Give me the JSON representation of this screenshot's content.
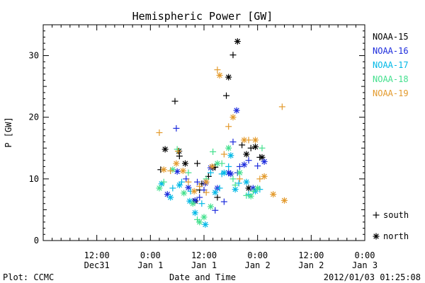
{
  "chart_data": {
    "type": "scatter",
    "title": "Hemispheric Power [GW]",
    "ylabel": "P [GW]",
    "xlabel": "Date and Time",
    "ylim": [
      0,
      35
    ],
    "yticks": [
      0,
      10,
      20,
      30
    ],
    "xlim": [
      -24,
      48
    ],
    "x_unit": "hours since 2012-01-01 00:00 UT",
    "xticks": [
      {
        "x": -12,
        "line1": "12:00",
        "line2": "Dec31"
      },
      {
        "x": 0,
        "line1": "0:00",
        "line2": "Jan 1"
      },
      {
        "x": 12,
        "line1": "12:00",
        "line2": "Jan 1"
      },
      {
        "x": 24,
        "line1": "0:00",
        "line2": "Jan 2"
      },
      {
        "x": 36,
        "line1": "12:00",
        "line2": "Jan 2"
      },
      {
        "x": 48,
        "line1": "0:00",
        "line2": "Jan 3"
      }
    ],
    "grid": false,
    "legend_position": "right",
    "marker_legend": [
      {
        "marker": "plus",
        "label": "south"
      },
      {
        "marker": "star",
        "label": "north"
      }
    ],
    "series": [
      {
        "name": "NOAA-15",
        "color": "#000000",
        "south": [
          [
            2.3,
            11.5
          ],
          [
            5.5,
            22.6
          ],
          [
            6.5,
            13.7
          ],
          [
            10.5,
            12.5
          ],
          [
            11.5,
            9.2
          ],
          [
            13.0,
            10.4
          ],
          [
            14.5,
            11.9
          ],
          [
            15.0,
            7.0
          ],
          [
            17.0,
            23.5
          ],
          [
            18.5,
            30.1
          ],
          [
            20.5,
            15.5
          ],
          [
            22.5,
            15.0
          ],
          [
            24.5,
            13.5
          ],
          [
            11.0,
            8.2
          ]
        ],
        "star": [
          [
            3.3,
            14.8
          ],
          [
            6.4,
            14.5
          ],
          [
            7.8,
            12.5
          ],
          [
            10.0,
            6.4
          ],
          [
            14.0,
            11.8
          ],
          [
            17.5,
            26.5
          ],
          [
            19.5,
            32.3
          ],
          [
            21.5,
            14.0
          ],
          [
            23.5,
            15.2
          ],
          [
            25.0,
            13.5
          ],
          [
            22.0,
            8.5
          ]
        ]
      },
      {
        "name": "NOAA-16",
        "color": "#1c2bdc",
        "south": [
          [
            5.8,
            18.2
          ],
          [
            8.0,
            10.0
          ],
          [
            11.0,
            7.0
          ],
          [
            12.0,
            8.2
          ],
          [
            14.5,
            4.9
          ],
          [
            16.5,
            6.3
          ],
          [
            18.5,
            16.0
          ],
          [
            20.0,
            12.0
          ],
          [
            22.0,
            13.0
          ],
          [
            24.0,
            12.1
          ],
          [
            10.5,
            9.5
          ],
          [
            19.5,
            11.0
          ]
        ],
        "star": [
          [
            3.8,
            7.5
          ],
          [
            6.0,
            11.2
          ],
          [
            8.5,
            8.6
          ],
          [
            10.0,
            6.5
          ],
          [
            12.3,
            9.3
          ],
          [
            15.0,
            8.5
          ],
          [
            17.5,
            11.0
          ],
          [
            19.3,
            21.1
          ],
          [
            21.0,
            12.3
          ],
          [
            23.0,
            8.5
          ],
          [
            25.5,
            12.8
          ],
          [
            13.5,
            11.8
          ],
          [
            18.0,
            10.8
          ]
        ]
      },
      {
        "name": "NOAA-17",
        "color": "#00b8e6",
        "south": [
          [
            5.0,
            8.5
          ],
          [
            7.0,
            9.5
          ],
          [
            9.0,
            8.0
          ],
          [
            11.5,
            6.0
          ],
          [
            13.5,
            11.0
          ],
          [
            15.5,
            8.5
          ],
          [
            17.5,
            12.0
          ],
          [
            19.8,
            9.3
          ],
          [
            22.0,
            7.5
          ],
          [
            24.5,
            8.3
          ],
          [
            16.0,
            10.8
          ]
        ],
        "star": [
          [
            2.5,
            9.2
          ],
          [
            4.5,
            7.0
          ],
          [
            6.5,
            9.0
          ],
          [
            8.8,
            6.4
          ],
          [
            10.0,
            4.5
          ],
          [
            12.3,
            2.6
          ],
          [
            14.5,
            7.8
          ],
          [
            16.5,
            11.0
          ],
          [
            19.0,
            8.3
          ],
          [
            21.5,
            9.5
          ],
          [
            23.5,
            8.0
          ],
          [
            18.0,
            13.8
          ]
        ]
      },
      {
        "name": "NOAA-18",
        "color": "#44e08e",
        "south": [
          [
            3.0,
            9.5
          ],
          [
            6.0,
            14.8
          ],
          [
            8.5,
            11.0
          ],
          [
            10.5,
            3.4
          ],
          [
            12.5,
            10.0
          ],
          [
            14.0,
            14.4
          ],
          [
            16.0,
            12.5
          ],
          [
            18.5,
            10.0
          ],
          [
            21.5,
            7.3
          ],
          [
            23.0,
            8.0
          ],
          [
            25.0,
            15.0
          ],
          [
            19.0,
            9.0
          ]
        ],
        "star": [
          [
            2.0,
            8.5
          ],
          [
            5.0,
            11.5
          ],
          [
            7.5,
            7.7
          ],
          [
            9.5,
            6.0
          ],
          [
            11.0,
            3.0
          ],
          [
            12.0,
            3.8
          ],
          [
            15.0,
            12.5
          ],
          [
            17.5,
            15.0
          ],
          [
            20.0,
            11.0
          ],
          [
            22.5,
            7.2
          ],
          [
            24.0,
            8.5
          ],
          [
            13.5,
            5.5
          ]
        ]
      },
      {
        "name": "NOAA-19",
        "color": "#e39a2c",
        "south": [
          [
            2.0,
            17.5
          ],
          [
            4.5,
            11.3
          ],
          [
            6.2,
            14.5
          ],
          [
            8.5,
            9.5
          ],
          [
            11.0,
            8.8
          ],
          [
            15.0,
            27.7
          ],
          [
            17.5,
            18.5
          ],
          [
            20.0,
            10.0
          ],
          [
            22.0,
            16.3
          ],
          [
            24.5,
            10.0
          ],
          [
            29.5,
            21.7
          ],
          [
            12.5,
            7.8
          ],
          [
            16.5,
            14.0
          ]
        ],
        "star": [
          [
            3.0,
            11.5
          ],
          [
            5.8,
            12.5
          ],
          [
            7.3,
            11.3
          ],
          [
            9.8,
            8.0
          ],
          [
            12.5,
            9.5
          ],
          [
            15.5,
            26.8
          ],
          [
            18.5,
            20.0
          ],
          [
            21.0,
            16.3
          ],
          [
            23.5,
            16.3
          ],
          [
            25.5,
            10.4
          ],
          [
            27.5,
            7.5
          ],
          [
            30.0,
            6.5
          ],
          [
            13.8,
            12.0
          ]
        ]
      }
    ]
  },
  "footer": {
    "plot_credit": "Plot: CCMC",
    "timestamp": "2012/01/03 01:25:08"
  }
}
